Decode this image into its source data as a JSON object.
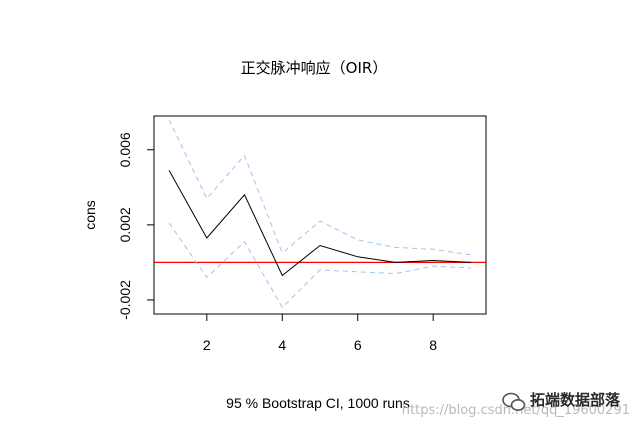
{
  "chart_data": {
    "type": "line",
    "title": "正交脉冲响应（OIR）",
    "ylabel": "cons",
    "xlabel": "95 % Bootstrap CI,  1000 runs",
    "x": [
      1,
      2,
      3,
      4,
      5,
      6,
      7,
      8,
      9
    ],
    "xticks": [
      "2",
      "4",
      "6",
      "8"
    ],
    "yticks": [
      "-0.002",
      "0.002",
      "0.006"
    ],
    "xlim": [
      0.6,
      9.4
    ],
    "ylim": [
      -0.00275,
      0.0078
    ],
    "zero_line": 0,
    "series": [
      {
        "role": "estimate",
        "color": "#000000",
        "dash": "solid",
        "values": [
          0.0049,
          0.0013,
          0.0036,
          -0.0007,
          0.0009,
          0.0003,
          0.0,
          0.0001,
          0.0
        ]
      },
      {
        "role": "upper-ci",
        "color": "#a0c4ee",
        "dash": "dashed",
        "values": [
          0.0076,
          0.0034,
          0.0057,
          0.0005,
          0.0022,
          0.0012,
          0.0008,
          0.0007,
          0.0004
        ]
      },
      {
        "role": "lower-ci",
        "color": "#a0c4ee",
        "dash": "dashed",
        "values": [
          0.0021,
          -0.0008,
          0.0011,
          -0.0024,
          -0.0004,
          -0.0005,
          -0.0006,
          -0.0002,
          -0.0003
        ]
      }
    ],
    "zero_line_color": "#ff0000",
    "grid": false,
    "legend": "none"
  },
  "watermark": {
    "brand": "拓端数据部落",
    "url": "https://blog.csdn.net/qq_19600291",
    "icon": "wechat-icon"
  }
}
